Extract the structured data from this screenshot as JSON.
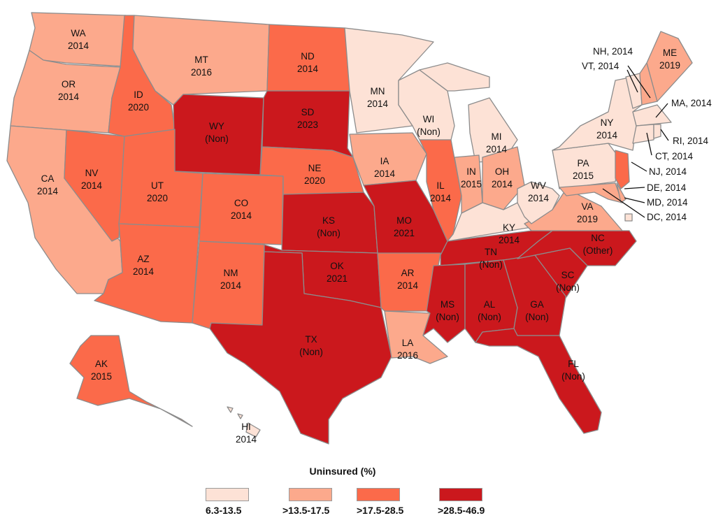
{
  "map": {
    "colors": {
      "cat1": "#fde2d6",
      "cat2": "#fca98c",
      "cat3": "#fb6a4a",
      "cat4": "#cb181d"
    },
    "states": [
      {
        "abbr": "WA",
        "label": "2014",
        "cat": "cat2"
      },
      {
        "abbr": "OR",
        "label": "2014",
        "cat": "cat2"
      },
      {
        "abbr": "CA",
        "label": "2014",
        "cat": "cat2"
      },
      {
        "abbr": "ID",
        "label": "2020",
        "cat": "cat3"
      },
      {
        "abbr": "NV",
        "label": "2014",
        "cat": "cat3"
      },
      {
        "abbr": "MT",
        "label": "2016",
        "cat": "cat2"
      },
      {
        "abbr": "WY",
        "label": "(Non)",
        "cat": "cat4"
      },
      {
        "abbr": "UT",
        "label": "2020",
        "cat": "cat3"
      },
      {
        "abbr": "AZ",
        "label": "2014",
        "cat": "cat3"
      },
      {
        "abbr": "CO",
        "label": "2014",
        "cat": "cat3"
      },
      {
        "abbr": "NM",
        "label": "2014",
        "cat": "cat3"
      },
      {
        "abbr": "ND",
        "label": "2014",
        "cat": "cat3"
      },
      {
        "abbr": "SD",
        "label": "2023",
        "cat": "cat4"
      },
      {
        "abbr": "NE",
        "label": "2020",
        "cat": "cat3"
      },
      {
        "abbr": "KS",
        "label": "(Non)",
        "cat": "cat4"
      },
      {
        "abbr": "OK",
        "label": "2021",
        "cat": "cat4"
      },
      {
        "abbr": "TX",
        "label": "(Non)",
        "cat": "cat4"
      },
      {
        "abbr": "MN",
        "label": "2014",
        "cat": "cat1"
      },
      {
        "abbr": "IA",
        "label": "2014",
        "cat": "cat2"
      },
      {
        "abbr": "MO",
        "label": "2021",
        "cat": "cat4"
      },
      {
        "abbr": "AR",
        "label": "2014",
        "cat": "cat3"
      },
      {
        "abbr": "LA",
        "label": "2016",
        "cat": "cat2"
      },
      {
        "abbr": "WI",
        "label": "(Non)",
        "cat": "cat1"
      },
      {
        "abbr": "IL",
        "label": "2014",
        "cat": "cat3"
      },
      {
        "abbr": "MI",
        "label": "2014",
        "cat": "cat1"
      },
      {
        "abbr": "IN",
        "label": "2015",
        "cat": "cat2"
      },
      {
        "abbr": "OH",
        "label": "2014",
        "cat": "cat2"
      },
      {
        "abbr": "KY",
        "label": "2014",
        "cat": "cat1"
      },
      {
        "abbr": "TN",
        "label": "(Non)",
        "cat": "cat4"
      },
      {
        "abbr": "MS",
        "label": "(Non)",
        "cat": "cat4"
      },
      {
        "abbr": "AL",
        "label": "(Non)",
        "cat": "cat4"
      },
      {
        "abbr": "GA",
        "label": "(Non)",
        "cat": "cat4"
      },
      {
        "abbr": "FL",
        "label": "(Non)",
        "cat": "cat4"
      },
      {
        "abbr": "SC",
        "label": "(Non)",
        "cat": "cat4"
      },
      {
        "abbr": "NC",
        "label": "(Other)",
        "cat": "cat4"
      },
      {
        "abbr": "VA",
        "label": "2019",
        "cat": "cat2"
      },
      {
        "abbr": "WV",
        "label": "2014",
        "cat": "cat1"
      },
      {
        "abbr": "PA",
        "label": "2015",
        "cat": "cat1"
      },
      {
        "abbr": "NY",
        "label": "2014",
        "cat": "cat1"
      },
      {
        "abbr": "ME",
        "label": "2019",
        "cat": "cat2"
      },
      {
        "abbr": "AK",
        "label": "2015",
        "cat": "cat3"
      },
      {
        "abbr": "HI",
        "label": "2014",
        "cat": "cat1"
      }
    ],
    "callouts": [
      {
        "abbr": "NH",
        "text": "NH, 2014",
        "cat": "cat2"
      },
      {
        "abbr": "VT",
        "text": "VT, 2014",
        "cat": "cat1"
      },
      {
        "abbr": "MA",
        "text": "MA, 2014",
        "cat": "cat1"
      },
      {
        "abbr": "RI",
        "text": "RI, 2014",
        "cat": "cat1"
      },
      {
        "abbr": "CT",
        "text": "CT, 2014",
        "cat": "cat1"
      },
      {
        "abbr": "NJ",
        "text": "NJ, 2014",
        "cat": "cat3"
      },
      {
        "abbr": "DE",
        "text": "DE, 2014",
        "cat": "cat2"
      },
      {
        "abbr": "MD",
        "text": "MD, 2014",
        "cat": "cat2"
      },
      {
        "abbr": "DC",
        "text": "DC, 2014",
        "cat": "cat1"
      }
    ]
  },
  "legend": {
    "title": "Uninsured (%)",
    "items": [
      {
        "label": "6.3-13.5",
        "cat": "cat1"
      },
      {
        "label": ">13.5-17.5",
        "cat": "cat2"
      },
      {
        "label": ">17.5-28.5",
        "cat": "cat3"
      },
      {
        "label": ">28.5-46.9",
        "cat": "cat4"
      }
    ]
  }
}
